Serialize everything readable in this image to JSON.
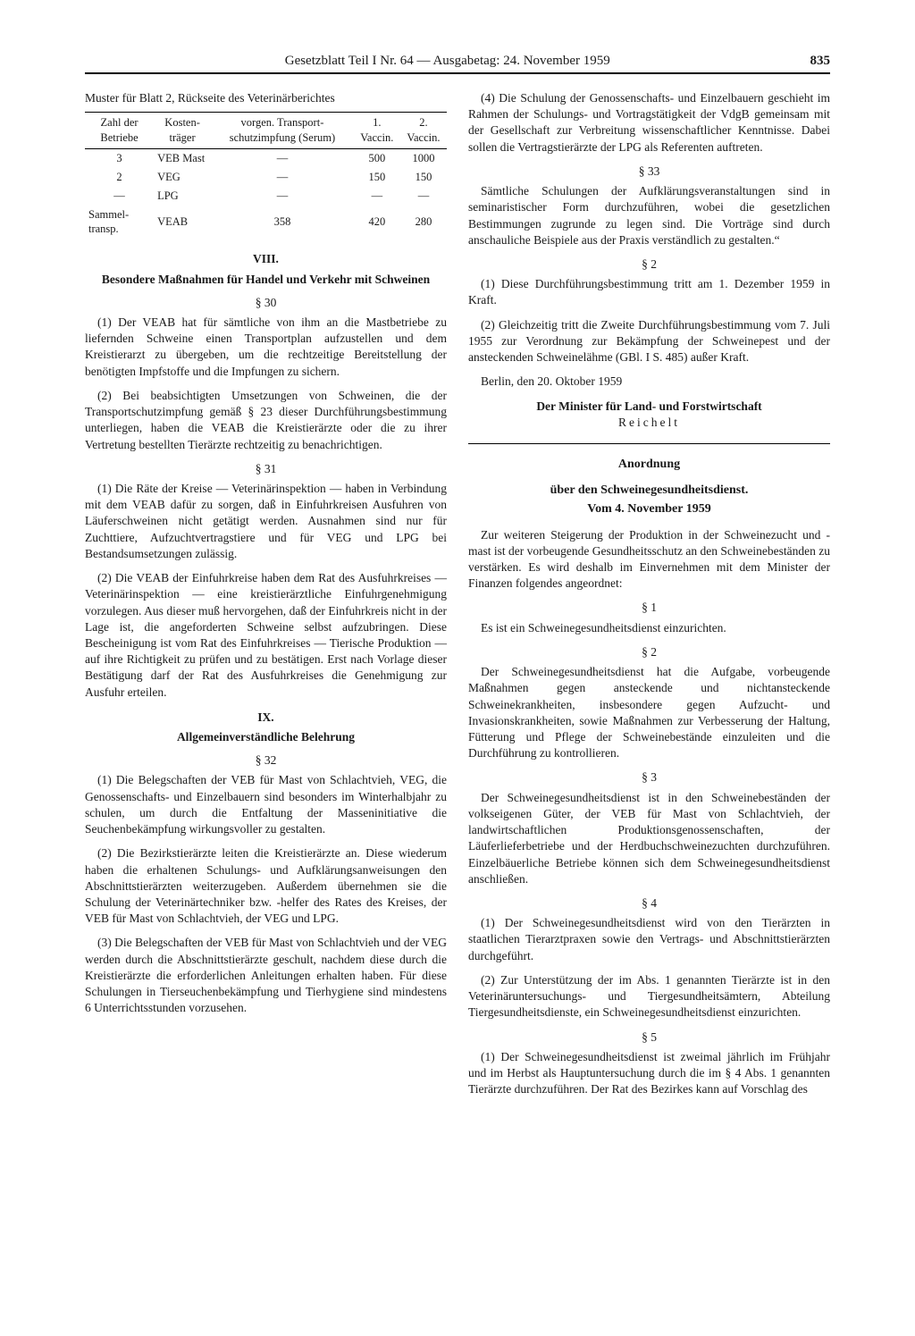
{
  "header": {
    "center": "Gesetzblatt Teil I Nr. 64 — Ausgabetag: 24. November 1959",
    "page": "835"
  },
  "left": {
    "table_caption": "Muster für Blatt 2, Rückseite des Veterinärberichtes",
    "table": {
      "headers": [
        "Zahl der Betriebe",
        "Kosten-träger",
        "vorgen. Transport-schutzimpfung (Serum)",
        "1. Vaccin.",
        "2. Vaccin."
      ],
      "rows": [
        [
          "3",
          "VEB Mast",
          "—",
          "500",
          "1000"
        ],
        [
          "2",
          "VEG",
          "—",
          "150",
          "150"
        ],
        [
          "—",
          "LPG",
          "—",
          "—",
          "—"
        ],
        [
          "Sammel-transp.",
          "VEAB",
          "358",
          "420",
          "280"
        ]
      ]
    },
    "s8_roman": "VIII.",
    "s8_title": "Besondere Maßnahmen für Handel und Verkehr mit Schweinen",
    "p30": "§ 30",
    "p30_1": "(1) Der VEAB hat für sämtliche von ihm an die Mastbetriebe zu liefernden Schweine einen Transportplan aufzustellen und dem Kreistierarzt zu übergeben, um die rechtzeitige Bereitstellung der benötigten Impfstoffe und die Impfungen zu sichern.",
    "p30_2": "(2) Bei beabsichtigten Umsetzungen von Schweinen, die der Transportschutzimpfung gemäß § 23 dieser Durchführungsbestimmung unterliegen, haben die VEAB die Kreistierärzte oder die zu ihrer Vertretung bestellten Tierärzte rechtzeitig zu benachrichtigen.",
    "p31": "§ 31",
    "p31_1": "(1) Die Räte der Kreise — Veterinärinspektion — haben in Verbindung mit dem VEAB dafür zu sorgen, daß in Einfuhrkreisen Ausfuhren von Läuferschweinen nicht getätigt werden. Ausnahmen sind nur für Zuchttiere, Aufzuchtvertragstiere und für VEG und LPG bei Bestandsumsetzungen zulässig.",
    "p31_2": "(2) Die VEAB der Einfuhrkreise haben dem Rat des Ausfuhrkreises — Veterinärinspektion — eine kreistierärztliche Einfuhrgenehmigung vorzulegen. Aus dieser muß hervorgehen, daß der Einfuhrkreis nicht in der Lage ist, die angeforderten Schweine selbst aufzubringen. Diese Bescheinigung ist vom Rat des Einfuhrkreises — Tierische Produktion — auf ihre Richtigkeit zu prüfen und zu bestätigen. Erst nach Vorlage dieser Bestätigung darf der Rat des Ausfuhrkreises die Genehmigung zur Ausfuhr erteilen.",
    "s9_roman": "IX.",
    "s9_title": "Allgemeinverständliche Belehrung",
    "p32": "§ 32",
    "p32_1": "(1) Die Belegschaften der VEB für Mast von Schlachtvieh, VEG, die Genossenschafts- und Einzelbauern sind besonders im Winterhalbjahr zu schulen, um durch die Entfaltung der Masseninitiative die Seuchenbekämpfung wirkungsvoller zu gestalten.",
    "p32_2": "(2) Die Bezirkstierärzte leiten die Kreistierärzte an. Diese wiederum haben die erhaltenen Schulungs- und Aufklärungsanweisungen den Abschnittstierärzten weiterzugeben. Außerdem übernehmen sie die Schulung der Veterinärtechniker bzw. -helfer des Rates des Kreises, der VEB für Mast von Schlachtvieh, der VEG und LPG.",
    "p32_3": "(3) Die Belegschaften der VEB für Mast von Schlachtvieh und der VEG werden durch die Abschnittstierärzte geschult, nachdem diese durch die Kreistierärzte die erforderlichen Anleitungen erhalten haben. Für diese Schulungen in Tierseuchenbekämpfung und Tierhygiene sind mindestens 6 Unterrichtsstunden vorzusehen."
  },
  "right": {
    "p32_4": "(4) Die Schulung der Genossenschafts- und Einzelbauern geschieht im Rahmen der Schulungs- und Vortragstätigkeit der VdgB gemeinsam mit der Gesellschaft zur Verbreitung wissenschaftlicher Kenntnisse. Dabei sollen die Vertragstierärzte der LPG als Referenten auftreten.",
    "p33": "§ 33",
    "p33_t": "Sämtliche Schulungen der Aufklärungsveranstaltungen sind in seminaristischer Form durchzuführen, wobei die gesetzlichen Bestimmungen zugrunde zu legen sind. Die Vorträge sind durch anschauliche Beispiele aus der Praxis verständlich zu gestalten.“",
    "p2": "§ 2",
    "p2_1": "(1) Diese Durchführungsbestimmung tritt am 1. Dezember 1959 in Kraft.",
    "p2_2": "(2) Gleichzeitig tritt die Zweite Durchführungsbestimmung vom 7. Juli 1955 zur Verordnung zur Bekämpfung der Schweinepest und der ansteckenden Schweinelähme (GBl. I S. 485) außer Kraft.",
    "place_date": "Berlin, den 20. Oktober 1959",
    "sig_role": "Der Minister für Land- und Forstwirtschaft",
    "sig_name": "Reichelt",
    "an_title": "Anordnung",
    "an_sub": "über den Schweinegesundheitsdienst.",
    "an_date": "Vom 4. November 1959",
    "an_intro": "Zur weiteren Steigerung der Produktion in der Schweinezucht und -mast ist der vorbeugende Gesundheitsschutz an den Schweinebeständen zu verstärken. Es wird deshalb im Einvernehmen mit dem Minister der Finanzen folgendes angeordnet:",
    "ap1": "§ 1",
    "ap1_t": "Es ist ein Schweinegesundheitsdienst einzurichten.",
    "ap2": "§ 2",
    "ap2_t": "Der Schweinegesundheitsdienst hat die Aufgabe, vorbeugende Maßnahmen gegen ansteckende und nichtansteckende Schweinekrankheiten, insbesondere gegen Aufzucht- und Invasionskrankheiten, sowie Maßnahmen zur Verbesserung der Haltung, Fütterung und Pflege der Schweinebestände einzuleiten und die Durchführung zu kontrollieren.",
    "ap3": "§ 3",
    "ap3_t": "Der Schweinegesundheitsdienst ist in den Schweinebeständen der volkseigenen Güter, der VEB für Mast von Schlachtvieh, der landwirtschaftlichen Produktionsgenossenschaften, der Läuferlieferbetriebe und der Herdbuchschweinezuchten durchzuführen. Einzelbäuerliche Betriebe können sich dem Schweinegesundheitsdienst anschließen.",
    "ap4": "§ 4",
    "ap4_1": "(1) Der Schweinegesundheitsdienst wird von den Tierärzten in staatlichen Tierarztpraxen sowie den Vertrags- und Abschnittstierärzten durchgeführt.",
    "ap4_2": "(2) Zur Unterstützung der im Abs. 1 genannten Tierärzte ist in den Veterinäruntersuchungs- und Tiergesundheitsämtern, Abteilung Tiergesundheitsdienste, ein Schweinegesundheitsdienst einzurichten.",
    "ap5": "§ 5",
    "ap5_1": "(1) Der Schweinegesundheitsdienst ist zweimal jährlich im Frühjahr und im Herbst als Hauptuntersuchung durch die im § 4 Abs. 1 genannten Tierärzte durchzuführen. Der Rat des Bezirkes kann auf Vorschlag des"
  }
}
